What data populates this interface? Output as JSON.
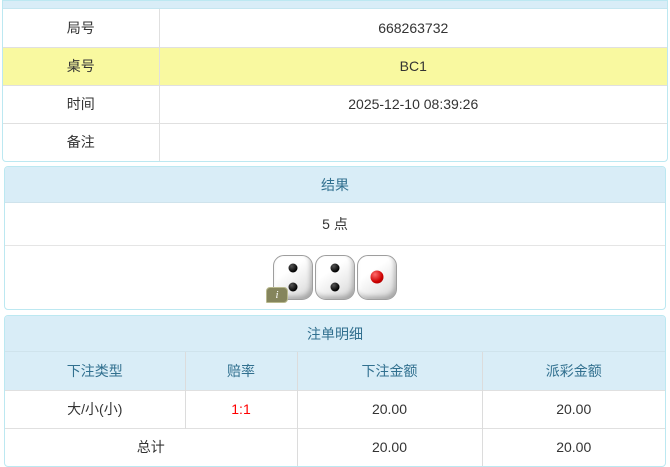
{
  "info": {
    "rows": [
      {
        "label": "局号",
        "value": "668263732",
        "highlight": false
      },
      {
        "label": "桌号",
        "value": "BC1",
        "highlight": true
      },
      {
        "label": "时间",
        "value": "2025-12-10 08:39:26",
        "highlight": false
      },
      {
        "label": "备注",
        "value": "",
        "highlight": false
      }
    ]
  },
  "result": {
    "title": "结果",
    "points_text": "5 点",
    "dice": [
      2,
      2,
      1
    ],
    "info_badge": "i"
  },
  "bets": {
    "title": "注单明细",
    "columns": [
      "下注类型",
      "赔率",
      "下注金额",
      "派彩金额"
    ],
    "rows": [
      {
        "type": "大/小(小)",
        "odds": "1:1",
        "bet": "20.00",
        "payout": "20.00"
      }
    ],
    "total": {
      "label": "总计",
      "bet": "20.00",
      "payout": "20.00"
    }
  },
  "colors": {
    "panel_border": "#bce8f1",
    "heading_bg": "#d9edf7",
    "heading_text": "#31708f",
    "highlight_row": "#f9f9a0",
    "odds_red": "#ff0000"
  }
}
